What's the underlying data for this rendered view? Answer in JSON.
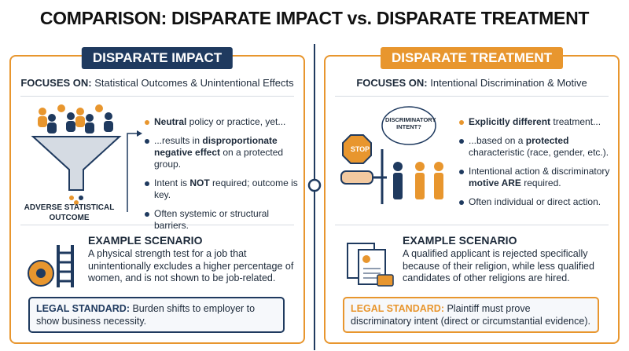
{
  "title": "COMPARISON: DISPARATE IMPACT vs. DISPARATE TREATMENT",
  "panels": [
    {
      "heading": "DISPARATE IMPACT",
      "focus_label": "FOCUSES ON:",
      "focus_text": "Statistical Outcomes & Unintentional Effects",
      "icon_texts": [
        "ADVERSE STATISTICAL OUTCOME"
      ],
      "bullets": [
        [
          "Neutral",
          " policy or practice, yet..."
        ],
        [
          "...results in ",
          "disproportionate negative effect",
          " on a protected group."
        ],
        [
          "Intent is ",
          "NOT",
          " required; outcome is key."
        ],
        [
          "Often systemic or structural barriers."
        ]
      ],
      "example_heading": "EXAMPLE SCENARIO",
      "example_text": "A physical strength test for a job that unintentionally excludes a higher percentage of women, and is not shown to be job-related.",
      "legal_label": "LEGAL STANDARD:",
      "legal_text": "Burden shifts to employer to show business necessity."
    },
    {
      "heading": "DISPARATE TREATMENT",
      "focus_label": "FOCUSES ON:",
      "focus_text": "Intentional Discrimination & Motive",
      "icon_texts": [
        "STOP",
        "DISCRIMINATORY INTENT?"
      ],
      "bullets": [
        [
          "Explicitly different",
          " treatment..."
        ],
        [
          "...based on a ",
          "protected",
          " characteristic (race, gender, etc.)."
        ],
        [
          "Intentional action & discriminatory ",
          "motive ARE",
          " required."
        ],
        [
          "Often individual or direct action."
        ]
      ],
      "example_heading": "EXAMPLE SCENARIO",
      "example_text": "A qualified applicant is rejected specifically because of their religion, while less qualified candidates of other religions are hired.",
      "legal_label": "LEGAL STANDARD:",
      "legal_text": "Plaintiff must prove discriminatory intent (direct or circumstantial evidence)."
    }
  ]
}
